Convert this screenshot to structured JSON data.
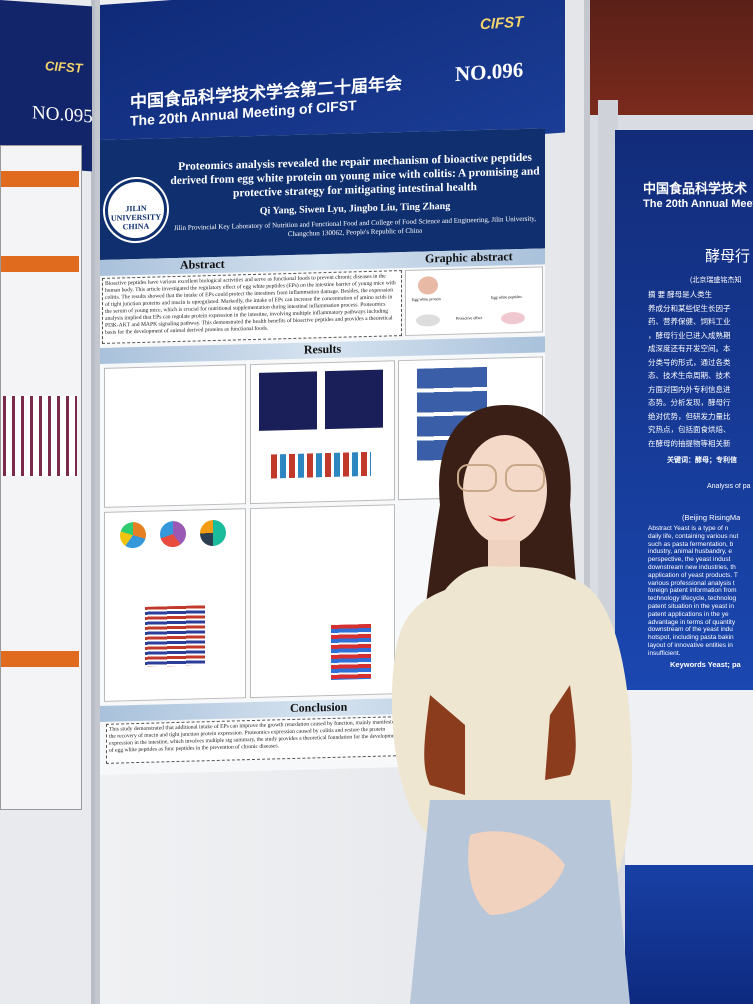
{
  "scene": {
    "description_type": "photo",
    "colors": {
      "poster_blue": "#0f2f6e",
      "header_blue": "#12246a",
      "accent_gold": "#f3d36b",
      "orange": "#e06a1e"
    }
  },
  "left_poster": {
    "brand": "CIFST",
    "number": "NO.095"
  },
  "main_header": {
    "title_cn": "中国食品科学技术学会第二十届年会",
    "title_en": "The 20th Annual Meeting of CIFST",
    "brand": "CIFST",
    "number": "NO.096"
  },
  "poster": {
    "logo_text": "JILIN UNIVERSITY CHINA",
    "title": "Proteomics analysis revealed the repair mechanism of bioactive peptides derived from egg white protein on young mice with colitis: A promising and protective strategy for mitigating intestinal health",
    "authors": "Qi Yang, Siwen Lyu, Jingbo Liu, Ting Zhang",
    "affiliation": "Jilin Provincial Key Laboratory of Nutrition and Functional Food and College of Food Science and Engineering, Jilin University, Changchun 130062, People's Republic of China",
    "abstract_heading": "Abstract",
    "abstract_text": "Bioactive peptides have various excellent biological activities and serve as functional foods to prevent chronic diseases in the human body. This article investigated the regulatory effect of egg white peptides (EPs) on the intestine barrier of young mice with colitis. The results showed that the intake of EPs could protect the intestines from inflammation damage. Besides, the expression of tight junction proteins and mucin is upregulated. Markedly, the intake of EPs can increase the concentration of amino acids in the serum of young mice, which is crucial for nutritional supplementation during intestinal inflammation process. Proteomics analysis implied that EPs can regulate protein expression in the intestine, involving multiple inflammatory pathways including PI3K-AKT and MAPK signaling pathway. This demonstrated the health benefits of bioactive peptides and provides a theoretical basis for the development of animal derived proteins as functional foods.",
    "graphic_abstract_heading": "Graphic abstract",
    "graphic_labels": [
      "Egg white protein",
      "Egg white peptides",
      "Protective effect"
    ],
    "results_heading": "Results",
    "conclusion_heading": "Conclusion",
    "conclusion_text": "This study demonstrated that additional intake of EPs can improve the growth retardation caused by function, mainly manifested in the recovery of mucin and tight junction protein expression. Proteomics expression caused by colitis and restore the protein expression in the intestine, which involves multiple sig summary, the study provides a theoretical foundation for the development of egg white peptides as func peptides in the prevention of chronic diseases."
  },
  "right_poster": {
    "title_cn": "中国食品科学技术",
    "title_en": "The 20th Annual Meet",
    "heading_cn": "酵母行",
    "affil_cn": "(北京瑞盛铭杰知",
    "abstract_cn_lines": [
      "摘 要  酵母是人类生",
      "养成分和某些促生长因子",
      "药、营养保健、饲料工业",
      "，酵母行业已进入成熟期",
      "成深度还有开发空间。本",
      "分类号的形式，通过各类",
      "态、技术生命周期、技术",
      "方面对国内外专利信息进",
      "态势。分析发现，酵母行",
      "绝对优势，但研发力量比",
      "究热点，包括面食烘焙、",
      "在酵母的抽提物等相关新"
    ],
    "keywords_cn": "关键词：酵母；专利信",
    "heading_en": "Analysis of pa",
    "affil_en": "(Beijing RisingMa",
    "abstract_en_lines": [
      "Abstract Yeast is a type of n",
      "daily life, containing various nut",
      "such as pasta fermentation, b",
      "industry, animal husbandry, e",
      "perspective, the yeast indust",
      "downstream new industries, th",
      "application of yeast products. T",
      "various professional analysis t",
      "foreign patent information from",
      "technology lifecycle, technolog",
      "patent situation in the yeast in",
      "patent applications in the ye",
      "advantage in terms of quantity",
      "downstream of the yeast indu",
      "hotspot, including pasta bakin",
      "layout of innovative entities in",
      "insufficient."
    ],
    "keywords_en": "Keywords Yeast; pa"
  }
}
